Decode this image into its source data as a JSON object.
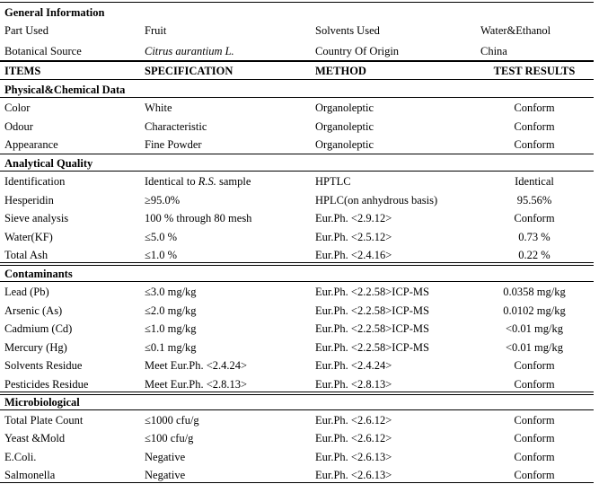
{
  "general": {
    "title": "General Information",
    "part_used_label": "Part Used",
    "part_used_value": "Fruit",
    "solvents_label": "Solvents Used",
    "solvents_value": "Water&Ethanol",
    "botanical_label": "Botanical Source",
    "botanical_value": "Citrus aurantium L.",
    "country_label": "Country Of Origin",
    "country_value": "China"
  },
  "headers": {
    "items": "ITEMS",
    "specification": "SPECIFICATION",
    "method": "METHOD",
    "results": "TEST RESULTS"
  },
  "sections": {
    "physical": "Physical&Chemical Data",
    "analytical": "Analytical Quality",
    "contaminants": "Contaminants",
    "micro": "Microbiological"
  },
  "physical": [
    {
      "item": "Color",
      "spec": "White",
      "method": "Organoleptic",
      "result": "Conform"
    },
    {
      "item": "Odour",
      "spec": "Characteristic",
      "method": "Organoleptic",
      "result": "Conform"
    },
    {
      "item": "Appearance",
      "spec": "Fine Powder",
      "method": "Organoleptic",
      "result": "Conform"
    }
  ],
  "analytical": [
    {
      "item": "Identification",
      "spec_pre": "Identical to ",
      "spec_em": "R.S.",
      "spec_post": " sample",
      "method": "HPTLC",
      "result": "Identical"
    },
    {
      "item": "Hesperidin",
      "spec": "≥95.0%",
      "method": "HPLC(on anhydrous basis)",
      "result": "95.56%"
    },
    {
      "item": "Sieve analysis",
      "spec": "100 % through 80 mesh",
      "method": "Eur.Ph. <2.9.12>",
      "result": "Conform"
    },
    {
      "item": "Water(KF)",
      "spec": "≤5.0 %",
      "method": "Eur.Ph. <2.5.12>",
      "result": "0.73 %"
    },
    {
      "item": "Total Ash",
      "spec": "≤1.0 %",
      "method": "Eur.Ph. <2.4.16>",
      "result": "0.22 %"
    }
  ],
  "contaminants": [
    {
      "item": "Lead (Pb)",
      "spec": "≤3.0 mg/kg",
      "method": "Eur.Ph. <2.2.58>ICP-MS",
      "result": "0.0358 mg/kg"
    },
    {
      "item": "Arsenic (As)",
      "spec": "≤2.0 mg/kg",
      "method": "Eur.Ph. <2.2.58>ICP-MS",
      "result": "0.0102 mg/kg"
    },
    {
      "item": "Cadmium (Cd)",
      "spec": "≤1.0 mg/kg",
      "method": "Eur.Ph. <2.2.58>ICP-MS",
      "result": "<0.01 mg/kg"
    },
    {
      "item": "Mercury (Hg)",
      "spec": "≤0.1 mg/kg",
      "method": "Eur.Ph. <2.2.58>ICP-MS",
      "result": "<0.01 mg/kg"
    },
    {
      "item": "Solvents Residue",
      "spec": "Meet Eur.Ph. <2.4.24>",
      "method": "Eur.Ph. <2.4.24>",
      "result": "Conform"
    },
    {
      "item": "Pesticides Residue",
      "spec": "Meet Eur.Ph. <2.8.13>",
      "method": "Eur.Ph. <2.8.13>",
      "result": "Conform"
    }
  ],
  "micro": [
    {
      "item": "Total Plate Count",
      "spec": "≤1000 cfu/g",
      "method": "Eur.Ph. <2.6.12>",
      "result": "Conform"
    },
    {
      "item": "Yeast &Mold",
      "spec": "≤100 cfu/g",
      "method": "Eur.Ph. <2.6.12>",
      "result": "Conform"
    },
    {
      "item": "E.Coli.",
      "spec": "Negative",
      "method": "Eur.Ph. <2.6.13>",
      "result": "Conform"
    },
    {
      "item": "Salmonella",
      "spec": "Negative",
      "method": "Eur.Ph. <2.6.13>",
      "result": "Conform"
    }
  ]
}
